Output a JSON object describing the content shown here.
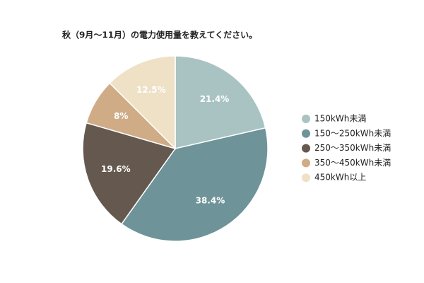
{
  "chart_data": {
    "type": "pie",
    "title": "秋（9月～11月）の電力使用量を教えてください。",
    "categories": [
      "150kWh未満",
      "150～250kWh未満",
      "250～350kWh未満",
      "350～450kWh未満",
      "450kWh以上"
    ],
    "values": [
      21.4,
      38.4,
      19.6,
      8,
      12.5
    ],
    "value_labels": [
      "21.4%",
      "38.4%",
      "19.6%",
      "8%",
      "12.5%"
    ],
    "colors": [
      "#a9c3c3",
      "#6e9399",
      "#65594f",
      "#d0ac86",
      "#eee1c6"
    ],
    "legend": "right"
  }
}
